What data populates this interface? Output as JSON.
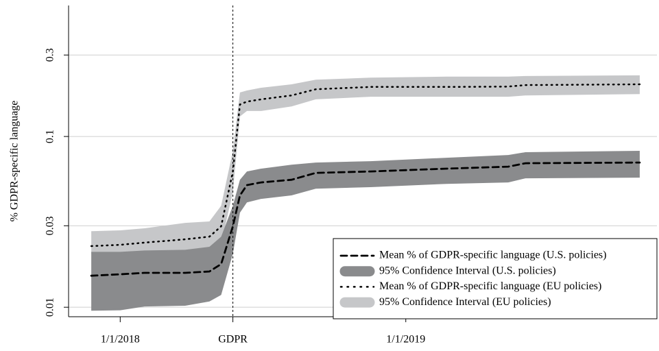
{
  "chart_data": {
    "type": "line",
    "ylabel": "% GDPR-specific language",
    "log_y": true,
    "grid": true,
    "legend": "lower right",
    "ylim": [
      0.0088,
      0.585
    ],
    "yticks": [
      0.01,
      0.03,
      0.1,
      0.3
    ],
    "xlim": [
      "2017-10-27",
      "2019-11-18"
    ],
    "xticks": [
      {
        "value": "2018-01-01",
        "label": "1/1/2018"
      },
      {
        "value": "2018-05-25",
        "label": "GDPR"
      },
      {
        "value": "2019-01-01",
        "label": "1/1/2019"
      }
    ],
    "vline": "2018-05-25",
    "x": [
      "2017-11-25",
      "2018-01-01",
      "2018-02-01",
      "2018-03-25",
      "2018-04-25",
      "2018-05-10",
      "2018-05-25",
      "2018-06-03",
      "2018-06-12",
      "2018-06-30",
      "2018-08-08",
      "2018-09-08",
      "2018-11-17",
      "2019-02-22",
      "2019-05-12",
      "2019-06-03",
      "2019-10-27"
    ],
    "series": [
      {
        "name": "Mean % of GDPR-specific language (U.S. policies)",
        "kind": "line",
        "style": "dashed",
        "color": "#000000",
        "values": [
          0.0153,
          0.0156,
          0.0159,
          0.0159,
          0.0162,
          0.0179,
          0.0298,
          0.0452,
          0.0519,
          0.0538,
          0.0558,
          0.0612,
          0.0624,
          0.0648,
          0.0666,
          0.0697,
          0.0704
        ]
      },
      {
        "name": "95% Confidence Interval (U.S. policies)",
        "kind": "band",
        "color": "#8a8b8d",
        "lower": [
          0.00955,
          0.0096,
          0.0101,
          0.0102,
          0.0108,
          0.0118,
          0.0206,
          0.0358,
          0.0411,
          0.0431,
          0.0452,
          0.0495,
          0.0505,
          0.0528,
          0.0538,
          0.0569,
          0.0574
        ],
        "upper": [
          0.0211,
          0.0211,
          0.0215,
          0.0217,
          0.0226,
          0.0259,
          0.0393,
          0.0558,
          0.0624,
          0.0648,
          0.0684,
          0.0704,
          0.0717,
          0.0751,
          0.0779,
          0.0809,
          0.0824
        ]
      },
      {
        "name": "Mean % of GDPR-specific language (EU policies)",
        "kind": "line",
        "style": "dotted",
        "color": "#000000",
        "values": [
          0.0228,
          0.0232,
          0.0239,
          0.025,
          0.0259,
          0.0298,
          0.0624,
          0.154,
          0.16,
          0.165,
          0.174,
          0.189,
          0.195,
          0.195,
          0.196,
          0.2,
          0.202
        ]
      },
      {
        "name": "95% Confidence Interval (EU policies)",
        "kind": "band",
        "color": "#c6c7c9",
        "lower": [
          0.0206,
          0.0202,
          0.0206,
          0.021,
          0.0215,
          0.0236,
          0.0473,
          0.131,
          0.141,
          0.141,
          0.15,
          0.165,
          0.171,
          0.171,
          0.171,
          0.174,
          0.177
        ],
        "upper": [
          0.0279,
          0.0282,
          0.029,
          0.0312,
          0.0318,
          0.0393,
          0.0824,
          0.181,
          0.186,
          0.193,
          0.202,
          0.215,
          0.221,
          0.224,
          0.224,
          0.226,
          0.228
        ]
      }
    ]
  }
}
